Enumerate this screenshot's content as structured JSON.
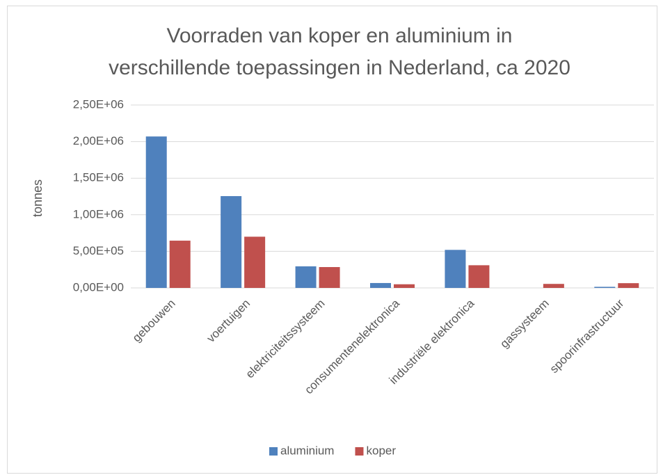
{
  "chart_data": {
    "type": "bar",
    "title": [
      "Voorraden van koper en aluminium in",
      "verschillende toepassingen in Nederland, ca 2020"
    ],
    "y_label": "tonnes",
    "categories": [
      "gebouwen",
      "voertuigen",
      "elektriciteitssysteem",
      "consumentenelektronica",
      "industriële elektronica",
      "gassysteem",
      "spoorinfrastructuur"
    ],
    "series": [
      {
        "name": "aluminium",
        "color": "#4f81bd",
        "values": [
          2070000,
          1255000,
          295000,
          67000,
          520000,
          0,
          15000
        ]
      },
      {
        "name": "koper",
        "color": "#c0504d",
        "values": [
          646000,
          700000,
          285000,
          50000,
          310000,
          55000,
          65000
        ]
      }
    ],
    "ylim": [
      0,
      2500000
    ],
    "yticks": [
      {
        "value": 0,
        "label": "0,00E+00"
      },
      {
        "value": 500000,
        "label": "5,00E+05"
      },
      {
        "value": 1000000,
        "label": "1,00E+06"
      },
      {
        "value": 1500000,
        "label": "1,50E+06"
      },
      {
        "value": 2000000,
        "label": "2,00E+06"
      },
      {
        "value": 2500000,
        "label": "2,50E+06"
      }
    ],
    "grid": true,
    "legend": "bottom"
  }
}
